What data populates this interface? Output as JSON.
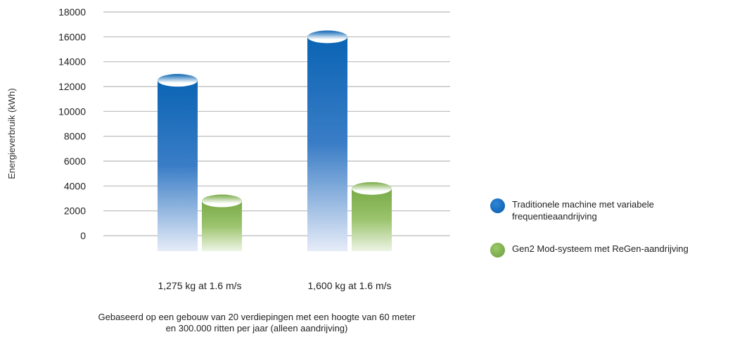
{
  "chart_data": {
    "type": "bar",
    "categories": [
      "1,275 kg at 1.6 m/s",
      "1,600 kg at 1.6 m/s"
    ],
    "series": [
      {
        "name": "Traditionele machine met variabele frequentieaandrijving",
        "values": [
          12500,
          16000
        ],
        "color": "#0a64b4"
      },
      {
        "name": "Gen2 Mod-systeem met ReGen-aandrijving",
        "values": [
          2800,
          3800
        ],
        "color": "#78aa46"
      }
    ],
    "ylabel": "Energieverbruik (kWh)",
    "xlabel": "",
    "ylim": [
      0,
      18000
    ],
    "yticks": [
      0,
      2000,
      4000,
      6000,
      8000,
      10000,
      12000,
      14000,
      16000,
      18000
    ],
    "grid": true,
    "legend": "right"
  },
  "footnote": {
    "line1": "Gebaseerd op een gebouw van 20 verdiepingen met een hoogte van 60 meter",
    "line2": "en 300.000 ritten per jaar (alleen aandrijving)"
  }
}
